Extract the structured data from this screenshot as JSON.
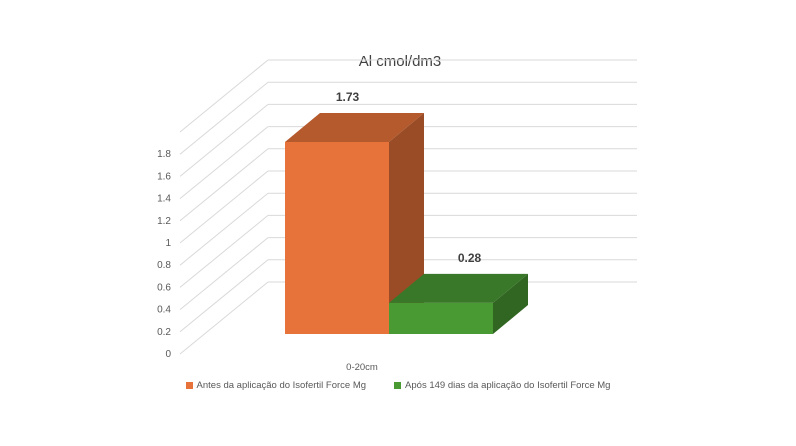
{
  "chart_data": {
    "type": "bar",
    "title": "Al cmol/dm3",
    "categories": [
      "0-20cm"
    ],
    "series": [
      {
        "name": "Antes da aplicação do Isofertil Force Mg",
        "values": [
          1.73
        ],
        "label": "1.73",
        "color": "#E8733A"
      },
      {
        "name": "Após 149 dias da aplicação do Isofertil Force Mg",
        "values": [
          0.28
        ],
        "label": "0.28",
        "color": "#4A9A34"
      }
    ],
    "yticks": [
      "0",
      "0.2",
      "0.4",
      "0.6",
      "0.8",
      "1",
      "1.2",
      "1.4",
      "1.6",
      "1.8"
    ],
    "ylim": [
      0,
      1.8
    ],
    "grid": true,
    "legend_position": "bottom",
    "xlabel": "",
    "ylabel": ""
  }
}
